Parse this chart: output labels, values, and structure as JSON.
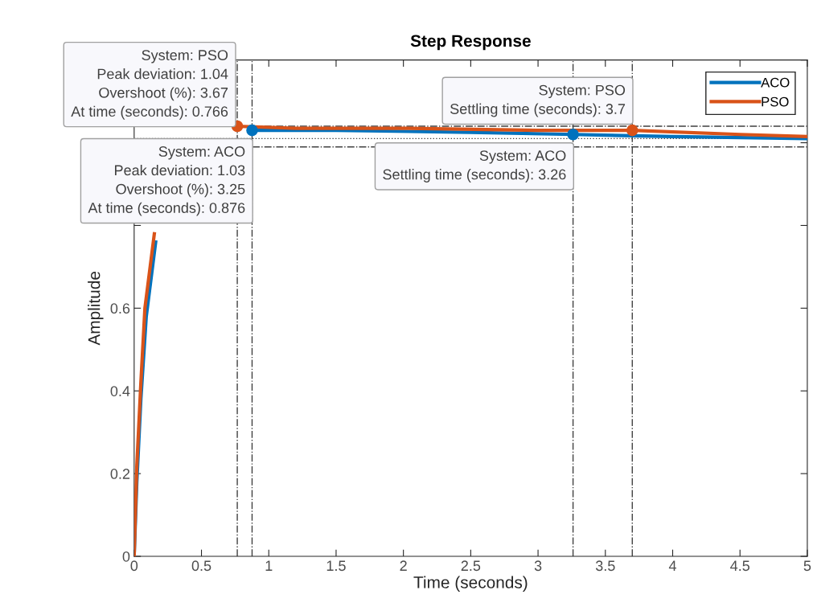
{
  "chart_data": {
    "type": "line",
    "title": "Step Response",
    "xlabel": "Time (seconds)",
    "ylabel": "Amplitude",
    "xlim": [
      0,
      5
    ],
    "xticks": [
      0,
      0.5,
      1,
      1.5,
      2,
      2.5,
      3,
      3.5,
      4,
      4.5,
      5
    ],
    "ylim": [
      0,
      1.2
    ],
    "yticks": [
      0,
      0.2,
      0.4,
      0.6,
      {
        "value": 0.8,
        "label": null
      },
      {
        "value": 1,
        "label": null
      },
      {
        "value": 1.2,
        "label": null
      }
    ],
    "grid": false,
    "legend": "top right",
    "line_style": "solid",
    "marker": "none",
    "series": [
      {
        "name": "ACO",
        "color": "#0072bd",
        "x": [
          0,
          0.02,
          0.05,
          0.09,
          0.16,
          0.25,
          0.4,
          0.6,
          0.876,
          1.5,
          2.5,
          3.26,
          4,
          5
        ],
        "values": [
          0,
          0.18,
          0.38,
          0.58,
          0.76,
          null,
          null,
          null,
          1.03,
          1.03,
          1.025,
          1.02,
          1.015,
          1.01
        ]
      },
      {
        "name": "PSO",
        "color": "#d95319",
        "x": [
          0,
          0.02,
          0.05,
          0.08,
          0.15,
          0.25,
          0.4,
          0.6,
          0.766,
          1.2,
          2,
          3,
          3.7,
          4.5,
          5
        ],
        "values": [
          0,
          0.22,
          0.42,
          0.6,
          0.78,
          null,
          null,
          null,
          1.04,
          1.035,
          1.035,
          1.03,
          1.03,
          1.02,
          1.015
        ]
      },
      {
        "type": "scatter",
        "marker": "circle",
        "color": "#0072bd",
        "x": [
          0.876,
          3.26
        ],
        "values": [
          1.03,
          1.02
        ]
      },
      {
        "type": "scatter",
        "marker": "circle",
        "color": "#d95319",
        "x": [
          0.766,
          3.7
        ],
        "values": [
          1.04,
          1.03
        ]
      }
    ],
    "ref_lines": [
      {
        "axis": "y",
        "value": 1.04,
        "color": "#404040",
        "line_style": "dashdot"
      },
      {
        "axis": "y",
        "value": 1.01,
        "color": "#404040",
        "line_style": "dotted"
      },
      {
        "axis": "y",
        "value": 0.99,
        "color": "#404040",
        "line_style": "dashdot"
      },
      {
        "axis": "x",
        "value": 0.766,
        "color": "#404040",
        "line_style": "dashdot"
      },
      {
        "axis": "x",
        "value": 0.876,
        "color": "#404040",
        "line_style": "dashdot"
      },
      {
        "axis": "x",
        "value": 3.26,
        "color": "#404040",
        "line_style": "dashdot"
      },
      {
        "axis": "x",
        "value": 3.7,
        "color": "#404040",
        "line_style": "dashdot"
      }
    ],
    "annotations": [
      {
        "text": "System: PSO\nPeak deviation: 1.04\nOvershoot (%): 3.67\nAt time (seconds): 0.766",
        "x": 0.766,
        "y": 1.04
      },
      {
        "text": "System: ACO\nPeak deviation: 1.03\nOvershoot (%): 3.25\nAt time (seconds): 0.876",
        "x": 0.876,
        "y": 1.03
      },
      {
        "text": "System: PSO\nSettling time (seconds): 3.7",
        "x": 3.7,
        "y": 1.03
      },
      {
        "text": "System: ACO\nSettling time (seconds): 3.26",
        "x": 3.26,
        "y": 1.02
      }
    ]
  }
}
